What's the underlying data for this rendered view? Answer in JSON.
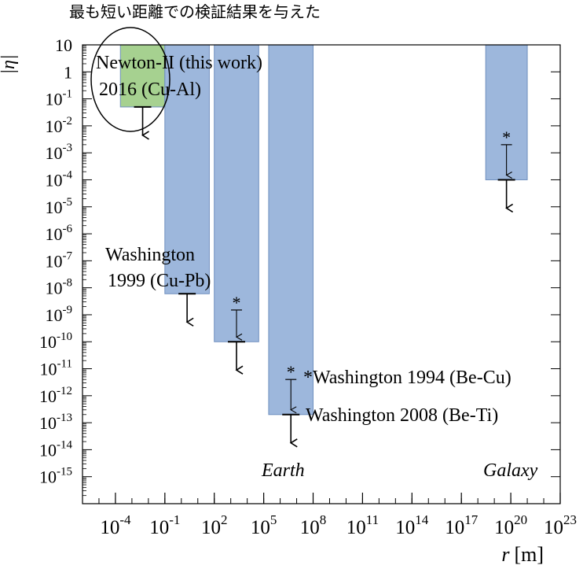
{
  "chart_data": {
    "type": "bar",
    "title": "最も短い距離での検証結果を与えた",
    "ylabel": "|η|",
    "xlabel_var": "r",
    "xlabel_unit": "[m]",
    "xscale": "log",
    "yscale": "log",
    "xlim": [
      1e-06,
      1e+23
    ],
    "ylim": [
      1e-16,
      10
    ],
    "grid": false,
    "x_ticks": [
      {
        "base": "10",
        "exp": "-4",
        "value": 0.0001
      },
      {
        "base": "10",
        "exp": "-1",
        "value": 0.1
      },
      {
        "base": "10",
        "exp": "2",
        "value": 100.0
      },
      {
        "base": "10",
        "exp": "5",
        "value": 100000.0
      },
      {
        "base": "10",
        "exp": "8",
        "value": 100000000.0
      },
      {
        "base": "10",
        "exp": "11",
        "value": 100000000000.0
      },
      {
        "base": "10",
        "exp": "14",
        "value": 100000000000000.0
      },
      {
        "base": "10",
        "exp": "17",
        "value": 1e+17
      },
      {
        "base": "10",
        "exp": "20",
        "value": 1e+20
      },
      {
        "base": "10",
        "exp": "23",
        "value": 1e+23
      }
    ],
    "y_ticks": [
      {
        "base": "10",
        "exp": "",
        "value": 10
      },
      {
        "base": "1",
        "exp": "",
        "value": 1
      },
      {
        "base": "10",
        "exp": "-1",
        "value": 0.1
      },
      {
        "base": "10",
        "exp": "-2",
        "value": 0.01
      },
      {
        "base": "10",
        "exp": "-3",
        "value": 0.001
      },
      {
        "base": "10",
        "exp": "-4",
        "value": 0.0001
      },
      {
        "base": "10",
        "exp": "-5",
        "value": 1e-05
      },
      {
        "base": "10",
        "exp": "-6",
        "value": 1e-06
      },
      {
        "base": "10",
        "exp": "-7",
        "value": 1e-07
      },
      {
        "base": "10",
        "exp": "-8",
        "value": 1e-08
      },
      {
        "base": "10",
        "exp": "-9",
        "value": 1e-09
      },
      {
        "base": "10",
        "exp": "-10",
        "value": 1e-10
      },
      {
        "base": "10",
        "exp": "-11",
        "value": 1e-11
      },
      {
        "base": "10",
        "exp": "-12",
        "value": 1e-12
      },
      {
        "base": "10",
        "exp": "-13",
        "value": 1e-13
      },
      {
        "base": "10",
        "exp": "-14",
        "value": 1e-14
      },
      {
        "base": "10",
        "exp": "-15",
        "value": 1e-15
      }
    ],
    "bars": [
      {
        "id": "newton-ii",
        "x_range": [
          0.0002,
          0.1
        ],
        "y_limit": 0.05,
        "color": "#a6d190",
        "upper_limit_arrow": true,
        "starred_limit": null
      },
      {
        "id": "washington-1999",
        "x_range": [
          0.1,
          50
        ],
        "y_limit": 6e-09,
        "color": "#9db7dc",
        "upper_limit_arrow": true,
        "starred_limit": null
      },
      {
        "id": "washington-1994-mid",
        "x_range": [
          100.0,
          50000.0
        ],
        "y_limit": 1e-10,
        "color": "#9db7dc",
        "upper_limit_arrow": true,
        "starred_limit": 1.5e-09
      },
      {
        "id": "washington-2008",
        "x_range": [
          200000.0,
          100000000.0
        ],
        "y_limit": 2e-13,
        "color": "#9db7dc",
        "upper_limit_arrow": true,
        "starred_limit": 4e-12
      },
      {
        "id": "galaxy",
        "x_range": [
          3e+18,
          1e+21
        ],
        "y_limit": 0.0001,
        "color": "#9db7dc",
        "upper_limit_arrow": true,
        "starred_limit": 0.002
      }
    ],
    "annotations": {
      "newton_line1": "Newton-II (this work)",
      "newton_line2": "2016 (Cu-Al)",
      "wash1999_line1": "Washington",
      "wash1999_line2": "1999 (Cu-Pb)",
      "wash1994": "*Washington 1994 (Be-Cu)",
      "wash2008": "Washington 2008 (Be-Ti)",
      "earth": "Earth",
      "galaxy": "Galaxy",
      "star": "*"
    }
  }
}
